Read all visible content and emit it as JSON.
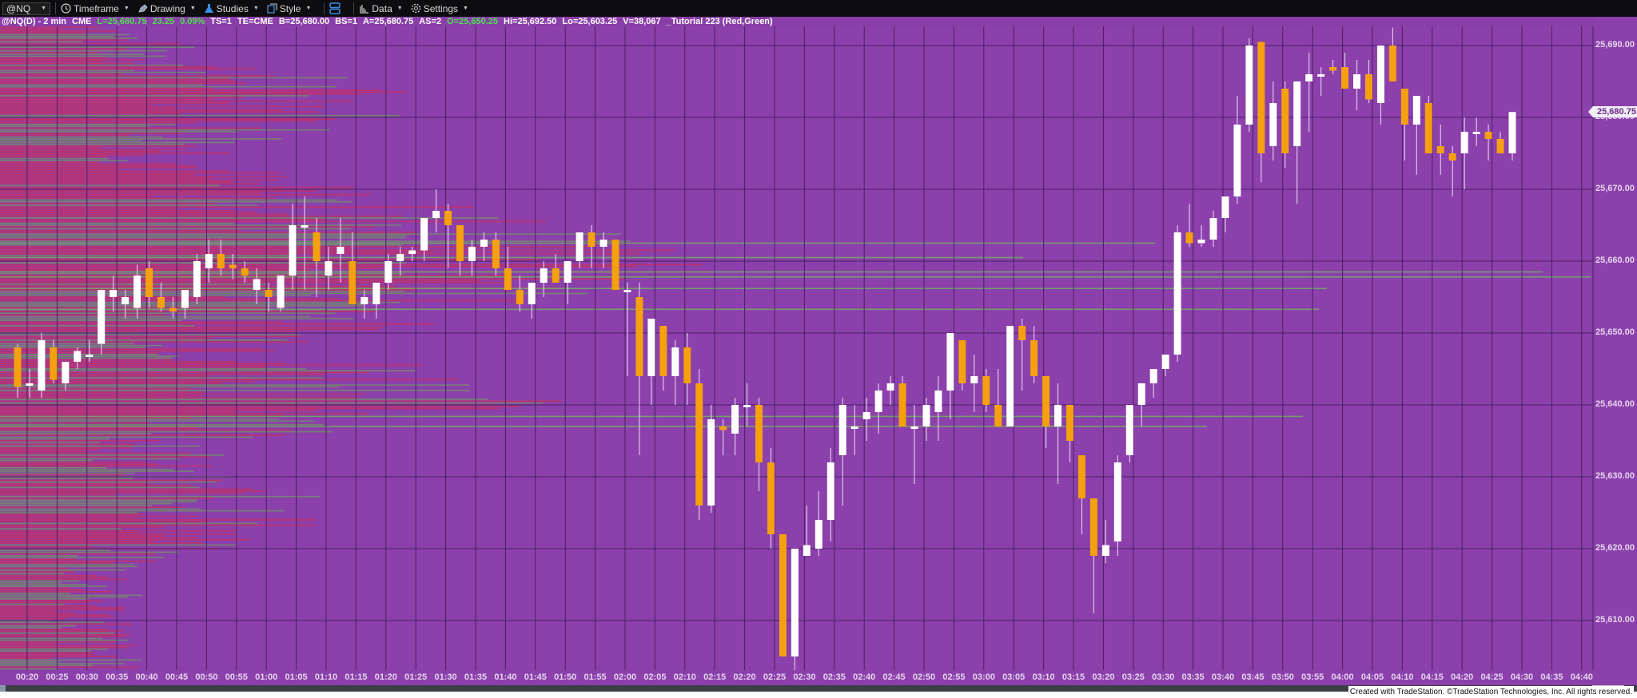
{
  "toolbar": {
    "symbol": "@NQ",
    "buttons": [
      {
        "label": "Timeframe",
        "icon": "clock-icon"
      },
      {
        "label": "Drawing",
        "icon": "drawing-icon"
      },
      {
        "label": "Studies",
        "icon": "flask-icon"
      },
      {
        "label": "Style",
        "icon": "style-icon"
      },
      {
        "label": "",
        "icon": "layout-icon"
      },
      {
        "label": "Data",
        "icon": "data-icon"
      },
      {
        "label": "Settings",
        "icon": "gear-icon"
      }
    ]
  },
  "infobar": {
    "symbol": "@NQ(D) - 2 min",
    "exchange": "CME",
    "last": "L=25,680.75",
    "net_change": "23.25",
    "pct_change": "0.09%",
    "ts": "TS=1",
    "te": "TE=CME",
    "bid": "B=25,680.00",
    "bid_size": "BS=1",
    "ask": "A=25,680.75",
    "ask_size": "AS=2",
    "open": "O=25,650.25",
    "high": "Hi=25,692.50",
    "low": "Lo=25,603.25",
    "volume": "V=38,067",
    "study": "_Tutorial 223 (Red,Green)"
  },
  "last_price_tag": "25,680.75",
  "copyright": "Created with TradeStation. ©TradeStation Technologies, Inc. All rights reserved.",
  "colors": {
    "background": "#8b40ab",
    "grid": "#4a1f63",
    "bull": "#ffffff",
    "bear": "#f5a00e",
    "profile_red": "#c8305f",
    "profile_green": "#6f9a5e"
  },
  "chart_data": {
    "type": "candlestick",
    "title": "@NQ(D) - 2 min",
    "xlabel": "",
    "ylabel": "",
    "ylim": [
      25602,
      25693
    ],
    "grid": true,
    "y_ticks": [
      "25,690.00",
      "25,680.00",
      "25,670.00",
      "25,660.00",
      "25,650.00",
      "25,640.00",
      "25,630.00",
      "25,620.00",
      "25,610.00"
    ],
    "x_ticks": [
      "00:20",
      "00:25",
      "00:30",
      "00:35",
      "00:40",
      "00:45",
      "00:50",
      "00:55",
      "01:00",
      "01:05",
      "01:10",
      "01:15",
      "01:20",
      "01:25",
      "01:30",
      "01:35",
      "01:40",
      "01:45",
      "01:50",
      "01:55",
      "02:00",
      "02:05",
      "02:10",
      "02:15",
      "02:20",
      "02:25",
      "02:30",
      "02:35",
      "02:40",
      "02:45",
      "02:50",
      "02:55",
      "03:00",
      "03:05",
      "03:10",
      "03:15",
      "03:20",
      "03:25",
      "03:30",
      "03:35",
      "03:40",
      "03:45",
      "03:50",
      "03:55",
      "04:00",
      "04:05",
      "04:10",
      "04:15",
      "04:20",
      "04:25",
      "04:30",
      "04:35",
      "04:40"
    ],
    "candles": [
      [
        25648,
        25648.5,
        25641,
        25642.5
      ],
      [
        25643,
        25645,
        25641,
        25643
      ],
      [
        25642,
        25650,
        25641,
        25649
      ],
      [
        25648,
        25649,
        25643,
        25643.5
      ],
      [
        25643,
        25646,
        25642,
        25646
      ],
      [
        25646,
        25648,
        25645,
        25647.5
      ],
      [
        25647,
        25649,
        25646,
        25647
      ],
      [
        25648.5,
        25656,
        25647,
        25656
      ],
      [
        25655,
        25658,
        25653,
        25656
      ],
      [
        25654,
        25656,
        25652,
        25655
      ],
      [
        25653.5,
        25659.5,
        25652,
        25658
      ],
      [
        25659,
        25660,
        25653.5,
        25655
      ],
      [
        25655,
        25657,
        25653,
        25653.5
      ],
      [
        25653.5,
        25655,
        25652,
        25653
      ],
      [
        25653.5,
        25656,
        25652,
        25656
      ],
      [
        25655,
        25661,
        25654,
        25660
      ],
      [
        25659,
        25663,
        25657,
        25661
      ],
      [
        25661,
        25663,
        25658,
        25659
      ],
      [
        25659.5,
        25661,
        25657.5,
        25659
      ],
      [
        25659,
        25660,
        25657,
        25658
      ],
      [
        25656,
        25659,
        25654,
        25657.5
      ],
      [
        25656,
        25657,
        25653,
        25655
      ],
      [
        25653.5,
        25658,
        25653,
        25658
      ],
      [
        25658,
        25668,
        25656,
        25665
      ],
      [
        25665,
        25669,
        25656,
        25665
      ],
      [
        25664,
        25666,
        25655,
        25660
      ],
      [
        25658,
        25662,
        25656,
        25660
      ],
      [
        25661,
        25666,
        25657,
        25662
      ],
      [
        25660,
        25664,
        25654,
        25654
      ],
      [
        25654,
        25656,
        25652,
        25655
      ],
      [
        25654,
        25657,
        25652,
        25657
      ],
      [
        25657,
        25661,
        25656,
        25660
      ],
      [
        25660,
        25662,
        25658,
        25661
      ],
      [
        25661,
        25662,
        25660,
        25661.5
      ],
      [
        25661.5,
        25666,
        25660,
        25666
      ],
      [
        25666,
        25670,
        25664,
        25667
      ],
      [
        25667,
        25668,
        25659,
        25665
      ],
      [
        25665,
        25664,
        25658,
        25660
      ],
      [
        25660,
        25663,
        25658,
        25662
      ],
      [
        25662,
        25664,
        25660,
        25663
      ],
      [
        25663,
        25664,
        25658,
        25659
      ],
      [
        25659,
        25662,
        25657,
        25656
      ],
      [
        25656,
        25658,
        25653,
        25654
      ],
      [
        25654,
        25657,
        25652,
        25657
      ],
      [
        25657,
        25660,
        25655,
        25659
      ],
      [
        25659,
        25661,
        25657,
        25657
      ],
      [
        25657,
        25660,
        25654,
        25660
      ],
      [
        25660,
        25664,
        25659,
        25664
      ],
      [
        25664,
        25665,
        25659,
        25662
      ],
      [
        25662,
        25664,
        25659,
        25663
      ],
      [
        25663,
        25662,
        25656,
        25656
      ],
      [
        25656,
        25657,
        25644,
        25656
      ],
      [
        25655,
        25657,
        25633,
        25644
      ],
      [
        25644,
        25652,
        25640,
        25652
      ],
      [
        25651,
        25649,
        25642,
        25644
      ],
      [
        25644,
        25649,
        25640,
        25648
      ],
      [
        25648,
        25650,
        25640,
        25643
      ],
      [
        25643,
        25645,
        25624,
        25626
      ],
      [
        25626,
        25640,
        25625,
        25638
      ],
      [
        25637,
        25638,
        25633,
        25636.5
      ],
      [
        25636,
        25641,
        25633,
        25640
      ],
      [
        25640,
        25643,
        25637,
        25640
      ],
      [
        25640,
        25641,
        25628,
        25632
      ],
      [
        25632,
        25634,
        25620,
        25622
      ],
      [
        25622,
        25621,
        25611,
        25605
      ],
      [
        25605,
        25617,
        25603,
        25620
      ],
      [
        25619,
        25626,
        25620,
        25620.5
      ],
      [
        25620,
        25628,
        25619,
        25624
      ],
      [
        25624,
        25634,
        25621,
        25632
      ],
      [
        25633,
        25641,
        25626,
        25640
      ],
      [
        25637,
        25640,
        25633,
        25637
      ],
      [
        25638,
        25641,
        25635,
        25639
      ],
      [
        25639,
        25643,
        25636,
        25642
      ],
      [
        25642,
        25644,
        25640,
        25643
      ],
      [
        25643,
        25644,
        25637,
        25637
      ],
      [
        25637,
        25640,
        25629,
        25637
      ],
      [
        25637,
        25641,
        25635,
        25640
      ],
      [
        25639,
        25644,
        25635,
        25642
      ],
      [
        25642,
        25650,
        25638,
        25650
      ],
      [
        25649,
        25648,
        25642,
        25643
      ],
      [
        25643,
        25647,
        25639,
        25644
      ],
      [
        25644,
        25645,
        25639,
        25640
      ],
      [
        25640,
        25645,
        25638,
        25637
      ],
      [
        25637,
        25650,
        25637,
        25651
      ],
      [
        25651,
        25652,
        25642,
        25649
      ],
      [
        25649,
        25651,
        25643,
        25644
      ],
      [
        25644,
        25644,
        25634,
        25637
      ],
      [
        25637,
        25643,
        25629,
        25640
      ],
      [
        25640,
        25639,
        25632,
        25635
      ],
      [
        25633,
        25630,
        25622,
        25627
      ],
      [
        25627,
        25627,
        25611,
        25619
      ],
      [
        25619,
        25624,
        25618,
        25620.5
      ],
      [
        25621,
        25633,
        25619,
        25632
      ],
      [
        25633,
        25640,
        25632,
        25640
      ],
      [
        25640,
        25643,
        25637,
        25643
      ],
      [
        25643,
        25645,
        25641,
        25645
      ],
      [
        25645,
        25647,
        25644,
        25647
      ],
      [
        25647,
        25665,
        25646,
        25664
      ],
      [
        25664,
        25668,
        25662,
        25662.5
      ],
      [
        25662.5,
        25665,
        25662,
        25663
      ],
      [
        25663,
        25667,
        25662,
        25666
      ],
      [
        25666,
        25669,
        25664,
        25669
      ],
      [
        25669,
        25683,
        25668,
        25679
      ],
      [
        25679,
        25691,
        25678,
        25690
      ],
      [
        25690.5,
        25690,
        25671,
        25675
      ],
      [
        25676,
        25685,
        25674,
        25682
      ],
      [
        25684,
        25685,
        25673,
        25675
      ],
      [
        25676,
        25680,
        25668,
        25685
      ],
      [
        25685,
        25689,
        25678,
        25686
      ],
      [
        25686,
        25687,
        25683,
        25686
      ],
      [
        25687,
        25688,
        25686,
        25686.5
      ],
      [
        25687,
        25689,
        25684,
        25684
      ],
      [
        25684,
        25688,
        25681,
        25686
      ],
      [
        25686,
        25688,
        25682,
        25682.5
      ],
      [
        25682,
        25690,
        25679,
        25690
      ],
      [
        25690,
        25692.5,
        25686,
        25685
      ],
      [
        25684,
        25684,
        25674,
        25679
      ],
      [
        25679,
        25683,
        25672,
        25683
      ],
      [
        25682,
        25683,
        25676,
        25675
      ],
      [
        25676,
        25679,
        25672,
        25675
      ],
      [
        25675,
        25676,
        25669,
        25674
      ],
      [
        25675,
        25680,
        25670,
        25678
      ],
      [
        25678,
        25680,
        25676,
        25678
      ],
      [
        25678,
        25679,
        25674,
        25677
      ],
      [
        25677,
        25678,
        25675,
        25675
      ],
      [
        25675,
        25680,
        25674,
        25680.75
      ]
    ],
    "candle_format": "[open, high, low, close]"
  }
}
